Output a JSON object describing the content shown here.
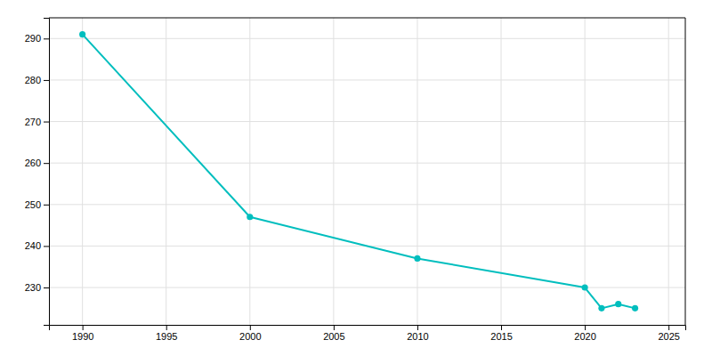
{
  "chart_data": {
    "type": "line",
    "x": [
      1990,
      2000,
      2010,
      2020,
      2021,
      2022,
      2023
    ],
    "values": [
      291,
      247,
      237,
      230,
      225,
      226,
      225
    ],
    "color": "#00BEBE",
    "marker": "circle",
    "xlim": [
      1988,
      2026
    ],
    "ylim": [
      221,
      295
    ],
    "xticks": [
      1990,
      1995,
      2000,
      2005,
      2010,
      2015,
      2020,
      2025
    ],
    "yticks": [
      230,
      240,
      250,
      260,
      270,
      280,
      290
    ],
    "grid": true
  }
}
